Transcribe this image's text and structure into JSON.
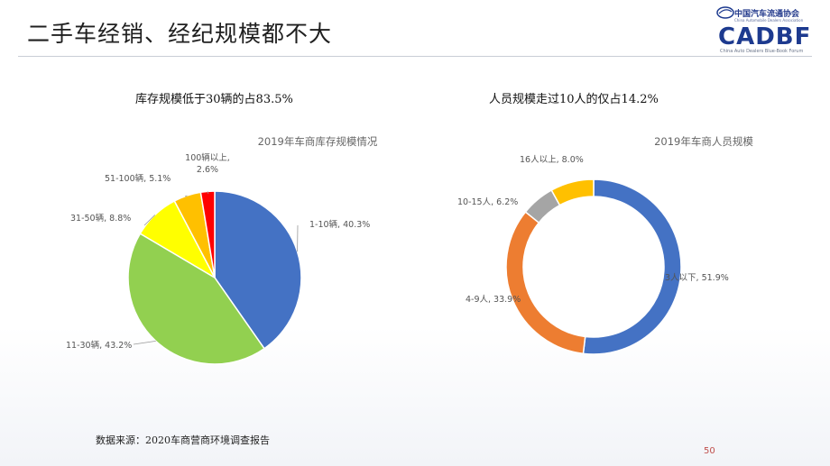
{
  "slide": {
    "title": "二手车经销、经纪规模都不大",
    "page_number": "50",
    "source": "数据来源：2020车商营商环境调查报告"
  },
  "logo": {
    "cn": "中国汽车流通协会",
    "en": "China Automobile Dealers Association",
    "main": "CADBF",
    "sub": "China Auto Dealers Blue-Book Forum"
  },
  "left": {
    "heading": "库存规模低于30辆的占83.5%"
  },
  "right": {
    "heading": "人员规模走过10人的仅占14.2%"
  },
  "chart_data": [
    {
      "type": "pie",
      "title": "2019年车商库存规模情况",
      "slices": [
        {
          "label": "1-10辆",
          "value": 40.3,
          "display": "1-10辆, 40.3%",
          "color": "#4472C4"
        },
        {
          "label": "11-30辆",
          "value": 43.2,
          "display": "11-30辆, 43.2%",
          "color": "#92D050"
        },
        {
          "label": "31-50辆",
          "value": 8.8,
          "display": "31-50辆, 8.8%",
          "color": "#FFFF00"
        },
        {
          "label": "51-100辆",
          "value": 5.1,
          "display": "51-100辆, 5.1%",
          "color": "#FFC000"
        },
        {
          "label": "100辆以上",
          "value": 2.6,
          "display": [
            "100辆以上,",
            "2.6%"
          ],
          "color": "#FF0000"
        }
      ]
    },
    {
      "type": "pie",
      "subtype": "doughnut",
      "title": "2019年车商人员规模",
      "slices": [
        {
          "label": "3人以下",
          "value": 51.9,
          "display": "3人以下, 51.9%",
          "color": "#4472C4"
        },
        {
          "label": "4-9人",
          "value": 33.9,
          "display": "4-9人, 33.9%",
          "color": "#ED7D31"
        },
        {
          "label": "10-15人",
          "value": 6.2,
          "display": "10-15人, 6.2%",
          "color": "#A5A5A5"
        },
        {
          "label": "16人以上",
          "value": 8.0,
          "display": "16人以上, 8.0%",
          "color": "#FFC000"
        }
      ]
    }
  ]
}
